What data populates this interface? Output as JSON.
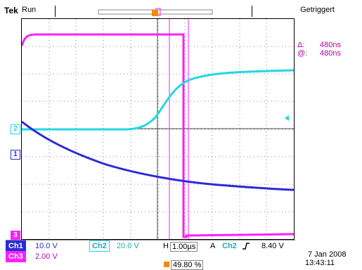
{
  "header": {
    "brand": "Tek",
    "run_state": "Run",
    "trigger_state": "Getriggert"
  },
  "measurement": {
    "delta_symbol": "Δ:",
    "delta_value": "480ns",
    "at_symbol": "@:",
    "at_value": "480ns"
  },
  "channels": [
    {
      "id": "Ch1",
      "scale": "10.0 V",
      "color": "#2a2ad8"
    },
    {
      "id": "Ch2",
      "scale": "20.0 V",
      "color": "#22d8e0"
    },
    {
      "id": "Ch3",
      "scale": "2.00 V",
      "color": "#ff20ff"
    }
  ],
  "timebase": {
    "label": "H",
    "value": "1.00µs"
  },
  "trigger": {
    "mode": "A",
    "source": "Ch2",
    "slope_icon": "rising-edge-icon",
    "level": "8.40 V"
  },
  "position": {
    "value": "49.80 %",
    "marker": "T"
  },
  "datetime": {
    "date": "7 Jan 2008",
    "time": "13:43:11"
  },
  "markers": {
    "ch1": "1",
    "ch2": "2",
    "ch3": "3",
    "trigger_top": "T"
  },
  "colors": {
    "cursor": "#ff20ff",
    "grid": "#6a6a6a",
    "trigger_marker": "#ff8800"
  }
}
